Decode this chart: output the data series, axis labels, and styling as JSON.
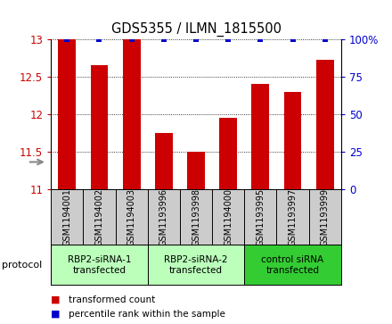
{
  "title": "GDS5355 / ILMN_1815500",
  "samples": [
    "GSM1194001",
    "GSM1194002",
    "GSM1194003",
    "GSM1193996",
    "GSM1193998",
    "GSM1194000",
    "GSM1193995",
    "GSM1193997",
    "GSM1193999"
  ],
  "bar_values": [
    13.0,
    12.65,
    13.0,
    11.75,
    11.5,
    11.95,
    12.4,
    12.3,
    12.72
  ],
  "percentile_values": [
    100,
    100,
    100,
    100,
    100,
    100,
    100,
    100,
    100
  ],
  "bar_color": "#cc0000",
  "percentile_color": "#0000cc",
  "ylim_left": [
    11,
    13
  ],
  "ylim_right": [
    0,
    100
  ],
  "yticks_left": [
    11,
    11.5,
    12,
    12.5,
    13
  ],
  "ytick_labels_left": [
    "11",
    "11.5",
    "12",
    "12.5",
    "13"
  ],
  "yticks_right": [
    0,
    25,
    50,
    75,
    100
  ],
  "ytick_labels_right": [
    "0",
    "25",
    "50",
    "75",
    "100%"
  ],
  "groups": [
    {
      "label": "RBP2-siRNA-1\ntransfected",
      "indices": [
        0,
        1,
        2
      ],
      "color": "#bbffbb"
    },
    {
      "label": "RBP2-siRNA-2\ntransfected",
      "indices": [
        3,
        4,
        5
      ],
      "color": "#bbffbb"
    },
    {
      "label": "control siRNA\ntransfected",
      "indices": [
        6,
        7,
        8
      ],
      "color": "#33cc33"
    }
  ],
  "protocol_label": "protocol",
  "legend_items": [
    {
      "label": "transformed count",
      "color": "#cc0000"
    },
    {
      "label": "percentile rank within the sample",
      "color": "#0000cc"
    }
  ],
  "sample_bg_color": "#cccccc",
  "plot_bg": "#ffffff",
  "bar_width": 0.55
}
